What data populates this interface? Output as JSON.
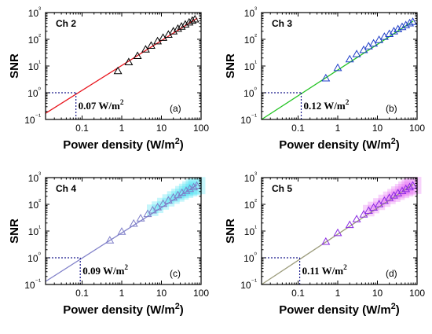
{
  "chart_data": [
    {
      "type": "scatter",
      "panel_label": "(a)",
      "channel": "Ch 2",
      "xlabel": "Power density (W/m²)",
      "ylabel": "SNR",
      "xscale": "log",
      "yscale": "log",
      "xlim": [
        0.012,
        100
      ],
      "ylim": [
        0.1,
        1000
      ],
      "xticks": [
        "0.1",
        "1",
        "10",
        "100"
      ],
      "yticks": [
        "10⁻¹",
        "10⁰",
        "10¹",
        "10²",
        "10³"
      ],
      "fit_color": "#e8141c",
      "marker_color": "#000000",
      "fit_line": {
        "x": [
          0.012,
          80
        ],
        "y": [
          0.17,
          620
        ]
      },
      "threshold": {
        "x": 0.07,
        "y": 1,
        "label": "0.07 W/m²"
      },
      "points": {
        "x": [
          0.8,
          1.5,
          2.5,
          4,
          5.5,
          8,
          11,
          15,
          20,
          26,
          32,
          40,
          50,
          60,
          70
        ],
        "y": [
          6.5,
          14,
          24,
          42,
          58,
          85,
          115,
          150,
          200,
          250,
          300,
          360,
          430,
          500,
          560
        ]
      }
    },
    {
      "type": "scatter",
      "panel_label": "(b)",
      "channel": "Ch 3",
      "xlabel": "Power density (W/m²)",
      "ylabel": "SNR",
      "xscale": "log",
      "yscale": "log",
      "xlim": [
        0.012,
        100
      ],
      "ylim": [
        0.1,
        1000
      ],
      "xticks": [
        "0.1",
        "1",
        "10",
        "100"
      ],
      "yticks": [
        "10⁻¹",
        "10⁰",
        "10¹",
        "10²",
        "10³"
      ],
      "fit_color": "#22c322",
      "marker_color": "#1f3ec8",
      "fit_line": {
        "x": [
          0.012,
          80
        ],
        "y": [
          0.1,
          480
        ]
      },
      "threshold": {
        "x": 0.12,
        "y": 1,
        "label": "0.12 W/m²"
      },
      "points": {
        "x": [
          0.5,
          1,
          2,
          3,
          4.5,
          6,
          8,
          11,
          15,
          20,
          26,
          33,
          42,
          52,
          65,
          78
        ],
        "y": [
          3.5,
          8.5,
          18,
          28,
          40,
          55,
          70,
          95,
          125,
          160,
          200,
          240,
          290,
          340,
          400,
          450
        ]
      }
    },
    {
      "type": "scatter",
      "panel_label": "(c)",
      "channel": "Ch 4",
      "xlabel": "Power density (W/m²)",
      "ylabel": "SNR",
      "xscale": "log",
      "yscale": "log",
      "xlim": [
        0.012,
        100
      ],
      "ylim": [
        0.1,
        1000
      ],
      "xticks": [
        "0.1",
        "1",
        "10",
        "100"
      ],
      "yticks": [
        "10⁻¹",
        "10⁰",
        "10¹",
        "10²",
        "10³"
      ],
      "fit_color": "#7f7fc8",
      "marker_color": "#7f7fc8",
      "band_color": "#2ee0f0",
      "fit_line": {
        "x": [
          0.012,
          80
        ],
        "y": [
          0.13,
          540
        ]
      },
      "threshold": {
        "x": 0.09,
        "y": 1,
        "label": "0.09 W/m²"
      },
      "points": {
        "x": [
          0.5,
          1,
          2,
          3,
          4.5,
          6,
          8,
          11,
          15,
          20,
          26,
          33,
          42,
          52,
          65,
          78
        ],
        "y": [
          4.5,
          9.5,
          19,
          30,
          44,
          60,
          78,
          105,
          140,
          180,
          220,
          270,
          320,
          380,
          440,
          500
        ]
      }
    },
    {
      "type": "scatter",
      "panel_label": "(d)",
      "channel": "Ch 5",
      "xlabel": "Power density (W/m²)",
      "ylabel": "SNR",
      "xscale": "log",
      "yscale": "log",
      "xlim": [
        0.012,
        100
      ],
      "ylim": [
        0.1,
        1000
      ],
      "xticks": [
        "0.1",
        "1",
        "10",
        "100"
      ],
      "yticks": [
        "10⁻¹",
        "10⁰",
        "10¹",
        "10²",
        "10³"
      ],
      "fit_color": "#9c9c7c",
      "marker_color": "#8a2be2",
      "band_color": "#e25cf0",
      "fit_line": {
        "x": [
          0.012,
          80
        ],
        "y": [
          0.1,
          560
        ]
      },
      "threshold": {
        "x": 0.11,
        "y": 1,
        "label": "0.11 W/m²"
      },
      "points": {
        "x": [
          0.5,
          1,
          2,
          3,
          4.5,
          6,
          8,
          11,
          15,
          20,
          26,
          33,
          42,
          52,
          65,
          78
        ],
        "y": [
          4,
          8.5,
          17,
          28,
          42,
          58,
          76,
          102,
          136,
          175,
          215,
          262,
          315,
          375,
          440,
          510
        ]
      }
    }
  ]
}
